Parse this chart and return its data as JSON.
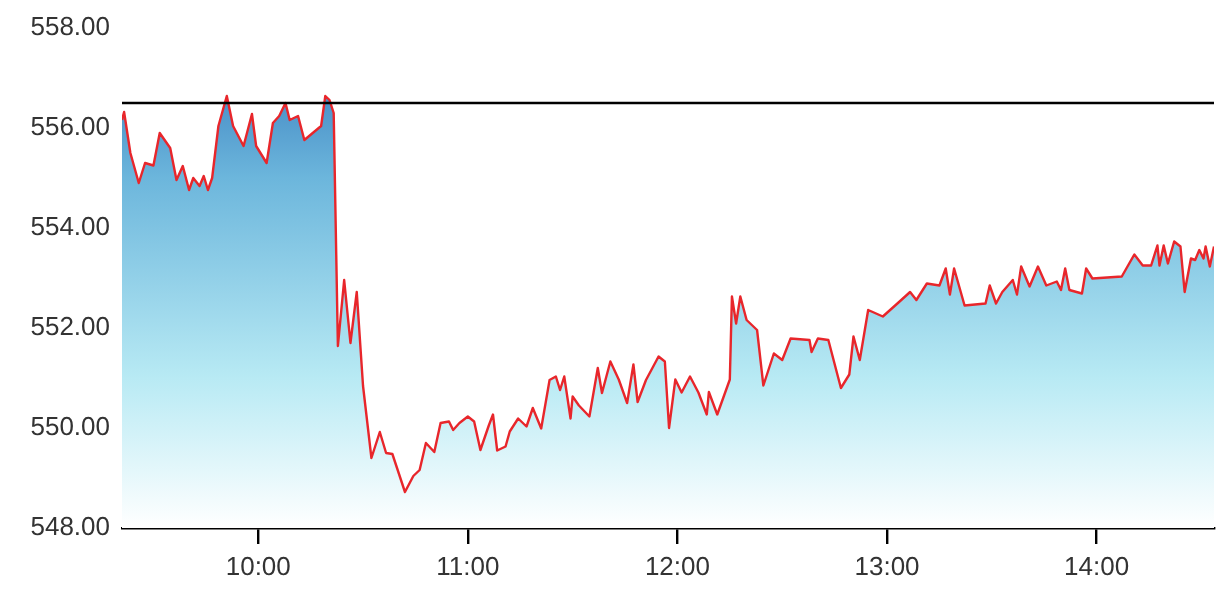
{
  "chart_data": {
    "type": "area",
    "x": [
      9.35,
      9.36,
      9.39,
      9.43,
      9.46,
      9.5,
      9.53,
      9.58,
      9.61,
      9.64,
      9.67,
      9.69,
      9.72,
      9.74,
      9.76,
      9.78,
      9.81,
      9.85,
      9.88,
      9.93,
      9.97,
      9.99,
      10.04,
      10.07,
      10.1,
      10.13,
      10.15,
      10.19,
      10.22,
      10.26,
      10.3,
      10.32,
      10.34,
      10.36,
      10.38,
      10.41,
      10.44,
      10.47,
      10.5,
      10.54,
      10.58,
      10.61,
      10.64,
      10.7,
      10.74,
      10.77,
      10.8,
      10.84,
      10.87,
      10.91,
      10.93,
      10.96,
      11.0,
      11.03,
      11.06,
      11.1,
      11.12,
      11.14,
      11.18,
      11.2,
      11.24,
      11.28,
      11.31,
      11.35,
      11.39,
      11.42,
      11.44,
      11.46,
      11.49,
      11.5,
      11.53,
      11.58,
      11.62,
      11.64,
      11.68,
      11.72,
      11.76,
      11.79,
      11.81,
      11.85,
      11.91,
      11.94,
      11.96,
      11.99,
      12.02,
      12.06,
      12.1,
      12.14,
      12.15,
      12.19,
      12.25,
      12.26,
      12.28,
      12.3,
      12.33,
      12.38,
      12.41,
      12.46,
      12.5,
      12.54,
      12.63,
      12.64,
      12.67,
      12.72,
      12.78,
      12.82,
      12.84,
      12.87,
      12.91,
      12.98,
      13.06,
      13.11,
      13.14,
      13.19,
      13.25,
      13.28,
      13.3,
      13.32,
      13.37,
      13.47,
      13.49,
      13.52,
      13.55,
      13.6,
      13.62,
      13.64,
      13.68,
      13.72,
      13.76,
      13.81,
      13.83,
      13.85,
      13.87,
      13.93,
      13.95,
      13.98,
      14.12,
      14.18,
      14.22,
      14.26,
      14.29,
      14.3,
      14.32,
      14.34,
      14.37,
      14.4,
      14.42,
      14.45,
      14.47,
      14.49,
      14.51,
      14.52,
      14.54,
      14.56
    ],
    "series": [
      {
        "color": "#e8262b",
        "values": [
          556.16,
          556.32,
          555.5,
          554.9,
          555.3,
          555.25,
          555.9,
          555.6,
          554.96,
          555.24,
          554.76,
          555.0,
          554.84,
          555.04,
          554.76,
          555.0,
          556.04,
          556.64,
          556.04,
          555.64,
          556.28,
          555.64,
          555.3,
          556.1,
          556.24,
          556.5,
          556.16,
          556.24,
          555.76,
          555.9,
          556.04,
          556.64,
          556.56,
          556.3,
          551.64,
          552.96,
          551.7,
          552.72,
          550.84,
          549.4,
          549.92,
          549.5,
          549.48,
          548.72,
          549.04,
          549.16,
          549.7,
          549.52,
          550.1,
          550.13,
          549.96,
          550.1,
          550.23,
          550.13,
          549.56,
          550.05,
          550.27,
          549.55,
          549.63,
          549.93,
          550.19,
          550.03,
          550.4,
          549.99,
          550.96,
          551.03,
          550.76,
          551.03,
          550.19,
          550.63,
          550.45,
          550.23,
          551.2,
          550.7,
          551.33,
          550.97,
          550.5,
          551.27,
          550.52,
          550.96,
          551.43,
          551.33,
          550.0,
          550.97,
          550.71,
          551.03,
          550.71,
          550.27,
          550.72,
          550.27,
          550.97,
          552.63,
          552.09,
          552.63,
          552.16,
          551.96,
          550.85,
          551.49,
          551.36,
          551.79,
          551.76,
          551.52,
          551.79,
          551.76,
          550.8,
          551.07,
          551.83,
          551.36,
          552.36,
          552.23,
          552.53,
          552.72,
          552.56,
          552.89,
          552.85,
          553.19,
          552.67,
          553.19,
          552.45,
          552.49,
          552.85,
          552.49,
          552.72,
          552.96,
          552.67,
          553.23,
          552.83,
          553.23,
          552.85,
          552.93,
          552.76,
          553.19,
          552.76,
          552.69,
          553.19,
          552.99,
          553.03,
          553.47,
          553.25,
          553.25,
          553.65,
          553.25,
          553.65,
          553.29,
          553.73,
          553.63,
          552.72,
          553.39,
          553.36,
          553.56,
          553.39,
          553.63,
          553.23,
          553.63
        ]
      }
    ],
    "xlim": [
      9.35,
      14.56
    ],
    "xticks": [
      {
        "value": 10,
        "label": "10:00"
      },
      {
        "value": 11,
        "label": "11:00"
      },
      {
        "value": 12,
        "label": "12:00"
      },
      {
        "value": 13,
        "label": "13:00"
      },
      {
        "value": 14,
        "label": "14:00"
      }
    ],
    "ylim": [
      548,
      558
    ],
    "yticks": [
      {
        "value": 548,
        "label": "548.00"
      },
      {
        "value": 550,
        "label": "550.00"
      },
      {
        "value": 552,
        "label": "552.00"
      },
      {
        "value": 554,
        "label": "554.00"
      },
      {
        "value": 556,
        "label": "556.00"
      },
      {
        "value": 558,
        "label": "558.00"
      }
    ],
    "ref_lines": [
      {
        "axis": "y",
        "value": 556.5,
        "color": "#000000"
      }
    ],
    "grid": false,
    "legend": false,
    "marker": "none",
    "line_style": "solid"
  }
}
